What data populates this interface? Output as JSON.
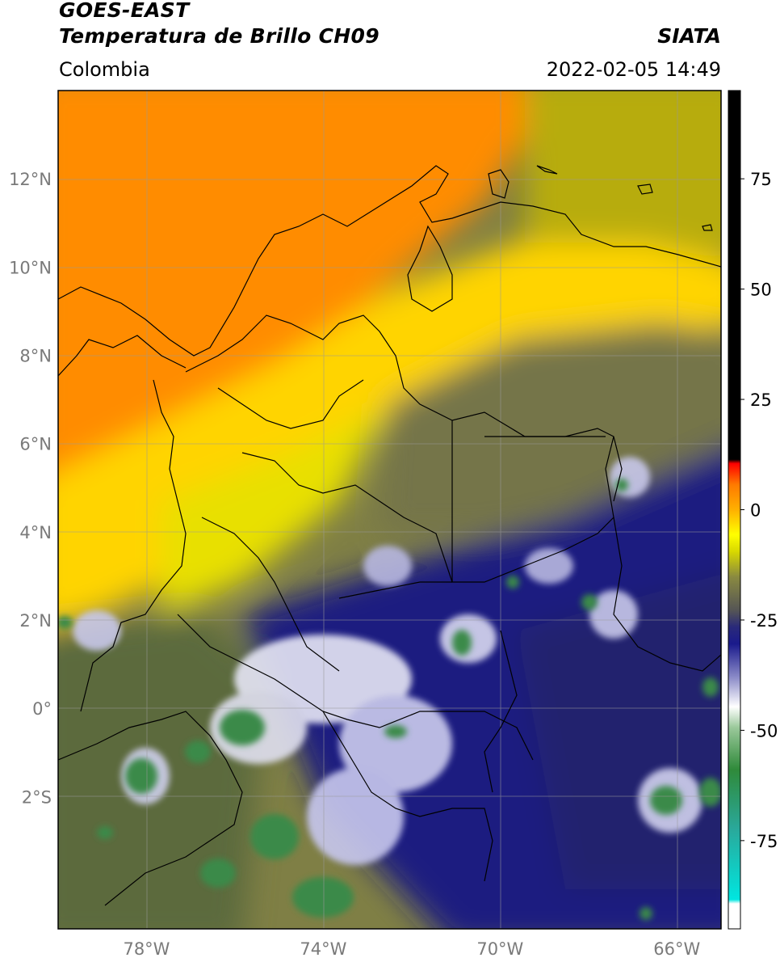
{
  "header": {
    "satellite": "GOES-EAST",
    "product": "Temperatura de Brillo CH09",
    "agency": "SIATA",
    "region": "Colombia",
    "datetime": "2022-02-05 14:49"
  },
  "map": {
    "lat_ticks": [
      {
        "value": 12,
        "label": "12°N"
      },
      {
        "value": 10,
        "label": "10°N"
      },
      {
        "value": 8,
        "label": "8°N"
      },
      {
        "value": 6,
        "label": "6°N"
      },
      {
        "value": 4,
        "label": "4°N"
      },
      {
        "value": 2,
        "label": "2°N"
      },
      {
        "value": 0,
        "label": "0°"
      },
      {
        "value": -2,
        "label": "2°S"
      }
    ],
    "lon_ticks": [
      {
        "value": -78,
        "label": "78°W"
      },
      {
        "value": -74,
        "label": "74°W"
      },
      {
        "value": -70,
        "label": "70°W"
      },
      {
        "value": -66,
        "label": "66°W"
      }
    ],
    "extent": {
      "lon_min": -80,
      "lon_max": -65,
      "lat_min": -5,
      "lat_max": 14
    }
  },
  "colorbar": {
    "range": [
      -95,
      95
    ],
    "ticks": [
      {
        "value": 75,
        "label": "75"
      },
      {
        "value": 50,
        "label": "50"
      },
      {
        "value": 25,
        "label": "25"
      },
      {
        "value": 0,
        "label": "0"
      },
      {
        "value": -25,
        "label": "-25"
      },
      {
        "value": -50,
        "label": "-50"
      },
      {
        "value": -75,
        "label": "-75"
      }
    ],
    "colors": [
      "#ffffff",
      "#00e0d8",
      "#2f8a3a",
      "#ffffff",
      "#1a1a8c",
      "#555555",
      "#ffff00",
      "#ff8000",
      "#ff0000",
      "#000000"
    ]
  }
}
